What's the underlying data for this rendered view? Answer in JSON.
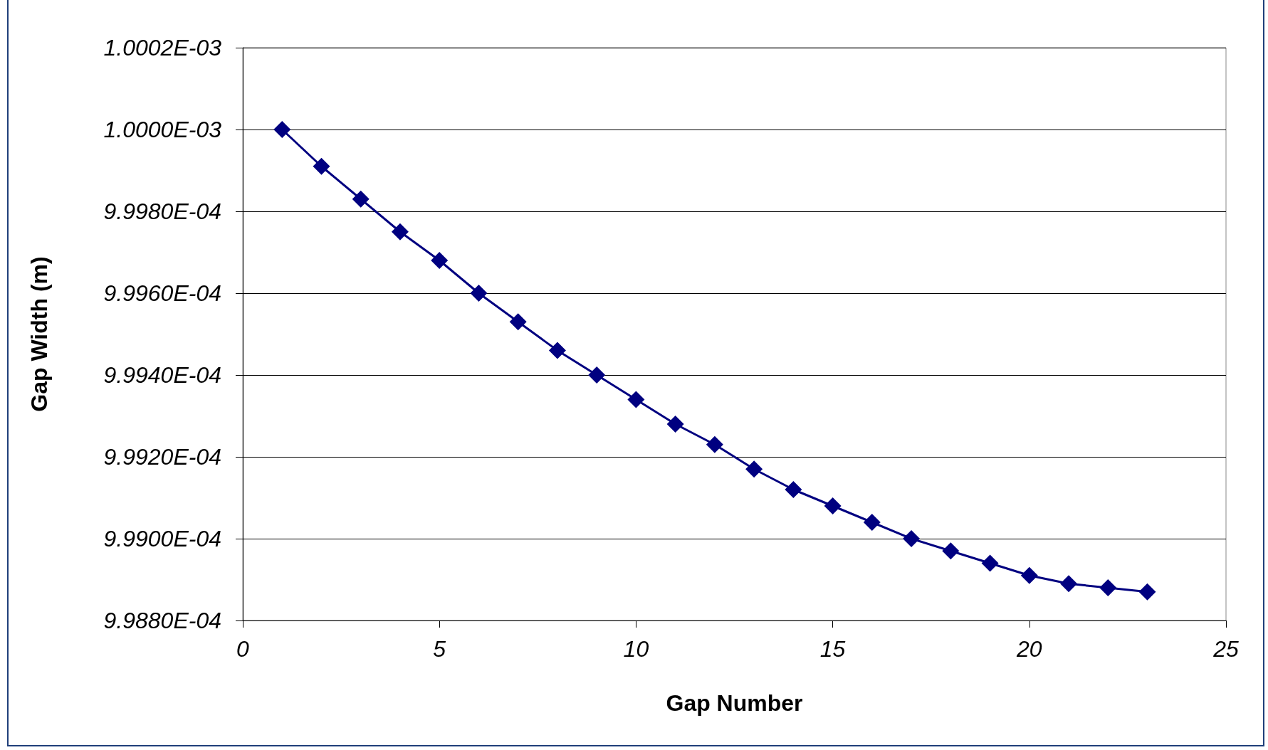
{
  "chart_data": {
    "type": "line",
    "xlabel": "Gap Number",
    "ylabel": "Gap Width (m)",
    "x": [
      1,
      2,
      3,
      4,
      5,
      6,
      7,
      8,
      9,
      10,
      11,
      12,
      13,
      14,
      15,
      16,
      17,
      18,
      19,
      20,
      21,
      22,
      23
    ],
    "series": [
      {
        "color": "#000080",
        "values": [
          0.001,
          0.00099991,
          0.00099983,
          0.00099975,
          0.00099968,
          0.0009996,
          0.00099953,
          0.00099946,
          0.0009994,
          0.00099934,
          0.00099928,
          0.00099923,
          0.00099917,
          0.00099912,
          0.00099908,
          0.00099904,
          0.000999,
          0.00099897,
          0.00099894,
          0.00099891,
          0.00099889,
          0.00099888,
          0.00099887
        ]
      }
    ],
    "xlim": [
      0,
      25
    ],
    "xticks": [
      0,
      5,
      10,
      15,
      20,
      25
    ],
    "ylim": [
      0.0009988,
      0.0010002
    ],
    "yticks": [
      {
        "value": 0.0009988,
        "label": "9.9880E-04"
      },
      {
        "value": 0.000999,
        "label": "9.9900E-04"
      },
      {
        "value": 0.0009992,
        "label": "9.9920E-04"
      },
      {
        "value": 0.0009994,
        "label": "9.9940E-04"
      },
      {
        "value": 0.0009996,
        "label": "9.9960E-04"
      },
      {
        "value": 0.0009998,
        "label": "9.9980E-04"
      },
      {
        "value": 0.001,
        "label": "1.0000E-03"
      },
      {
        "value": 0.0010002,
        "label": "1.0002E-03"
      }
    ],
    "grid": "y",
    "marker": "diamond",
    "line_style": "solid"
  }
}
